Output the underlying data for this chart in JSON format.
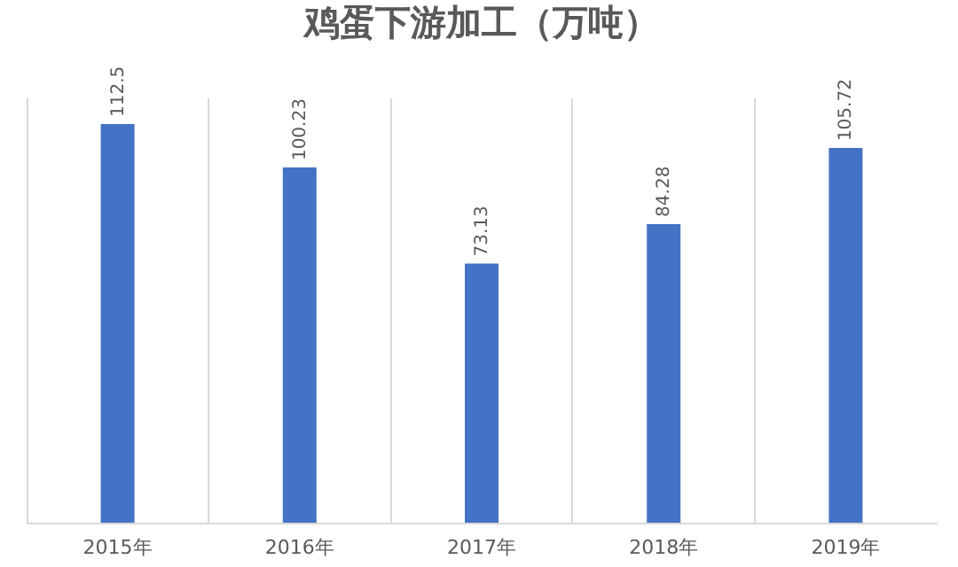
{
  "chart_data": {
    "type": "bar",
    "title": "鸡蛋下游加工（万吨）",
    "categories": [
      "2015年",
      "2016年",
      "2017年",
      "2018年",
      "2019年"
    ],
    "values": [
      112.5,
      100.23,
      73.13,
      84.28,
      105.72
    ],
    "color": "#4472c4",
    "data_labels": true,
    "grid": "x"
  }
}
